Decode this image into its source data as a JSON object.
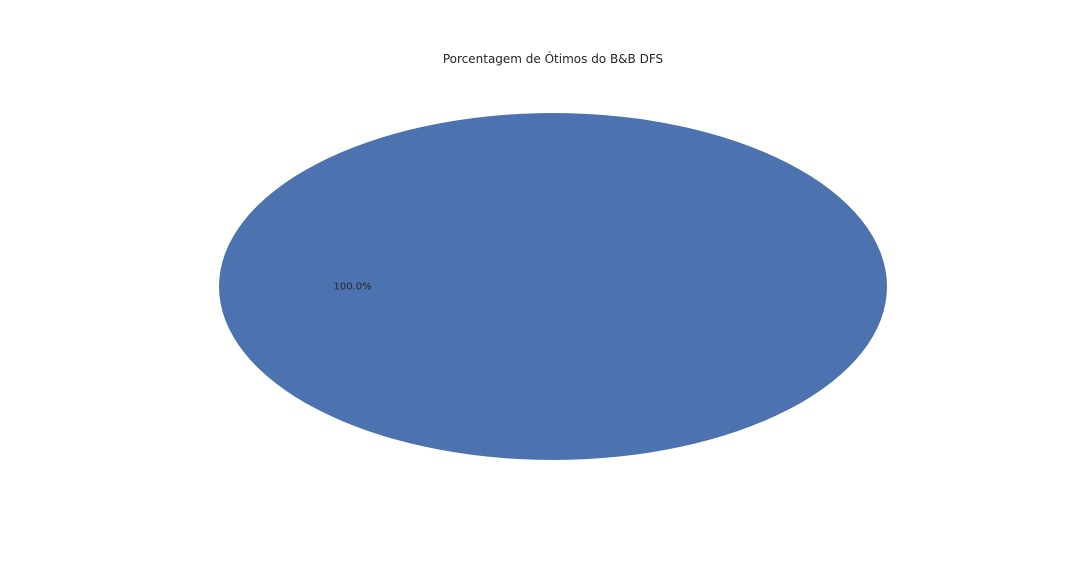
{
  "chart_data": {
    "type": "pie",
    "title": "Porcentagem de Ótimos do B&B DFS",
    "slices": [
      {
        "value": 100.0,
        "percent_label": "100.0%",
        "color": "#4c72b0"
      }
    ],
    "legend": "none",
    "grid": false
  }
}
